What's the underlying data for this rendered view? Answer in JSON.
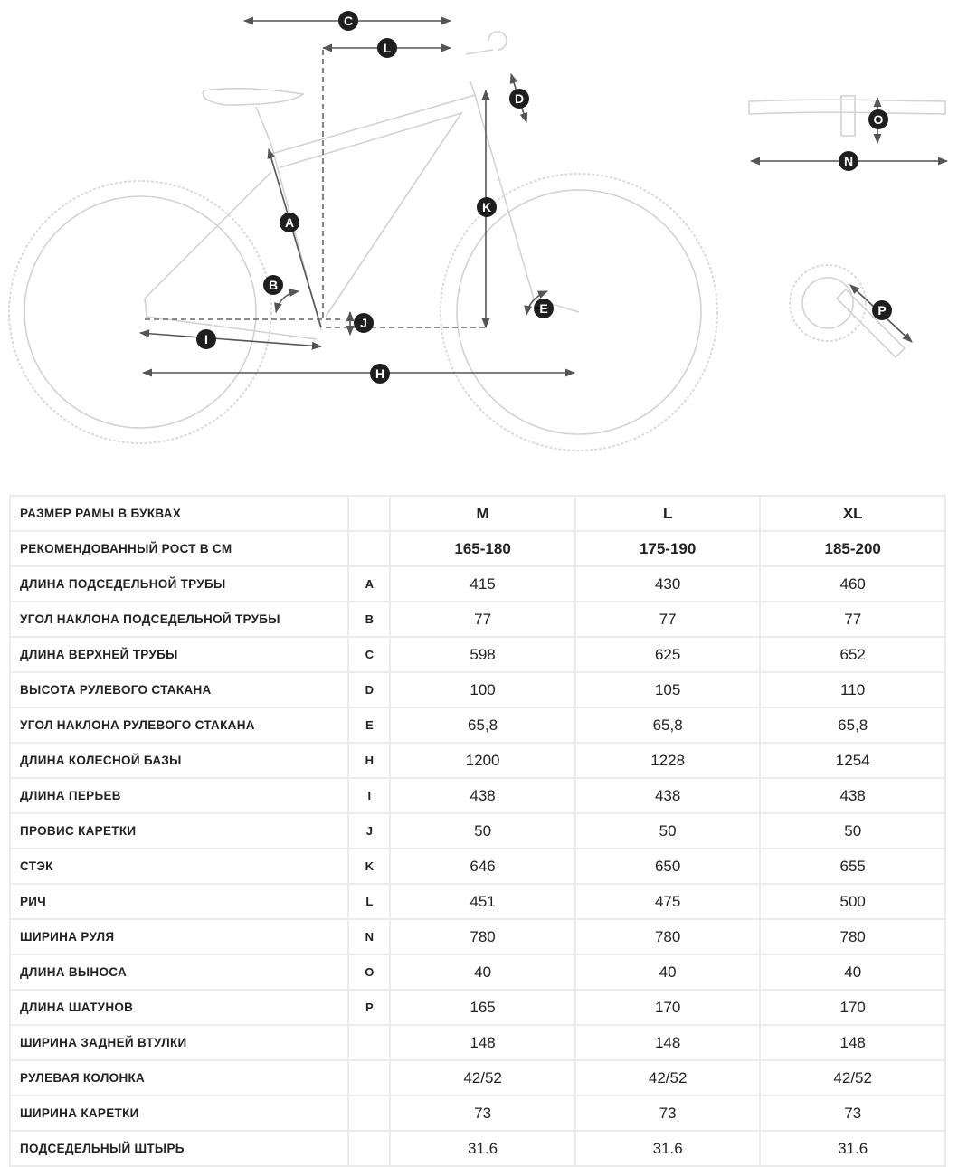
{
  "diagram": {
    "markers": [
      "A",
      "B",
      "C",
      "D",
      "E",
      "H",
      "I",
      "J",
      "K",
      "L",
      "N",
      "O",
      "P"
    ]
  },
  "table": {
    "rows": [
      {
        "label": "РАЗМЕР РАМЫ В БУКВАХ",
        "letter": "",
        "values": [
          "M",
          "L",
          "XL"
        ],
        "header": true
      },
      {
        "label": "РЕКОМЕНДОВАННЫЙ РОСТ В СМ",
        "letter": "",
        "values": [
          "165-180",
          "175-190",
          "185-200"
        ],
        "header": true
      },
      {
        "label": "ДЛИНА ПОДСЕДЕЛЬНОЙ ТРУБЫ",
        "letter": "A",
        "values": [
          "415",
          "430",
          "460"
        ]
      },
      {
        "label": "УГОЛ НАКЛОНА ПОДСЕДЕЛЬНОЙ ТРУБЫ",
        "letter": "B",
        "values": [
          "77",
          "77",
          "77"
        ]
      },
      {
        "label": "ДЛИНА ВЕРХНЕЙ ТРУБЫ",
        "letter": "C",
        "values": [
          "598",
          "625",
          "652"
        ]
      },
      {
        "label": "ВЫСОТА РУЛЕВОГО СТАКАНА",
        "letter": "D",
        "values": [
          "100",
          "105",
          "110"
        ]
      },
      {
        "label": "УГОЛ НАКЛОНА РУЛЕВОГО СТАКАНА",
        "letter": "E",
        "values": [
          "65,8",
          "65,8",
          "65,8"
        ]
      },
      {
        "label": "ДЛИНА КОЛЕСНОЙ БАЗЫ",
        "letter": "H",
        "values": [
          "1200",
          "1228",
          "1254"
        ]
      },
      {
        "label": "ДЛИНА ПЕРЬЕВ",
        "letter": "I",
        "values": [
          "438",
          "438",
          "438"
        ]
      },
      {
        "label": "ПРОВИС КАРЕТКИ",
        "letter": "J",
        "values": [
          "50",
          "50",
          "50"
        ]
      },
      {
        "label": "СТЭК",
        "letter": "K",
        "values": [
          "646",
          "650",
          "655"
        ]
      },
      {
        "label": "РИЧ",
        "letter": "L",
        "values": [
          "451",
          "475",
          "500"
        ]
      },
      {
        "label": "ШИРИНА РУЛЯ",
        "letter": "N",
        "values": [
          "780",
          "780",
          "780"
        ]
      },
      {
        "label": "ДЛИНА ВЫНОСА",
        "letter": "O",
        "values": [
          "40",
          "40",
          "40"
        ]
      },
      {
        "label": "ДЛИНА ШАТУНОВ",
        "letter": "P",
        "values": [
          "165",
          "170",
          "170"
        ]
      },
      {
        "label": "ШИРИНА ЗАДНЕЙ ВТУЛКИ",
        "letter": "",
        "values": [
          "148",
          "148",
          "148"
        ]
      },
      {
        "label": "РУЛЕВАЯ КОЛОНКА",
        "letter": "",
        "values": [
          "42/52",
          "42/52",
          "42/52"
        ]
      },
      {
        "label": "ШИРИНА КАРЕТКИ",
        "letter": "",
        "values": [
          "73",
          "73",
          "73"
        ]
      },
      {
        "label": "ПОДСЕДЕЛЬНЫЙ ШТЫРЬ",
        "letter": "",
        "values": [
          "31.6",
          "31.6",
          "31.6"
        ]
      }
    ]
  }
}
